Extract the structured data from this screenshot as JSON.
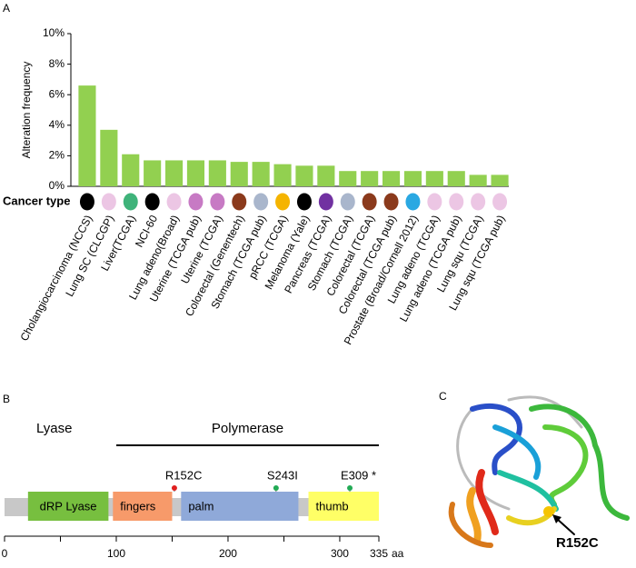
{
  "panels": [
    "A",
    "B",
    "C"
  ],
  "chart_data": {
    "type": "bar",
    "ylabel": "Alteration frequency",
    "row_label": "Cancer type",
    "categories": [
      "Cholangiocarcinoma (NCCS)",
      "Lung SC (CLCGP)",
      "Liver(TCGA)",
      "NCI-60",
      "Lung adeno(Broad)",
      "Uterine (TCGA pub)",
      "Uterine (TCGA)",
      "Colorectal (Genentech)",
      "Stomach (TCGA pub)",
      "pRCC (TCGA)",
      "Melanoma (Yale)",
      "Pancreas (TCGA)",
      "Stomach (TCGA)",
      "Colorectal (TCGA)",
      "Colorectal (TCGA pub)",
      "Prostate (Broad/Cornell 2012)",
      "Lung adeno (TCGA)",
      "Lung adeno (TCGA pub)",
      "Lung squ (TCGA)",
      "Lung squ (TCGA pub)"
    ],
    "values": [
      6.6,
      3.7,
      2.1,
      1.7,
      1.7,
      1.7,
      1.7,
      1.6,
      1.6,
      1.45,
      1.35,
      1.35,
      1.0,
      1.0,
      1.0,
      1.0,
      1.0,
      1.0,
      0.75,
      0.75
    ],
    "color": "#92d050",
    "type_colors": [
      "#000000",
      "#ecc6e4",
      "#3fb37a",
      "#000000",
      "#ecc6e4",
      "#c77ac4",
      "#c77ac4",
      "#8b3a1c",
      "#a9b6cc",
      "#f5b400",
      "#000000",
      "#7131a1",
      "#a9b6cc",
      "#8b3a1c",
      "#8b3a1c",
      "#2aa8e2",
      "#ecc6e4",
      "#ecc6e4",
      "#ecc6e4",
      "#ecc6e4"
    ],
    "category_colors": [
      "#000000",
      "#000000",
      "#000000",
      "#000000",
      "#000000",
      "#000000",
      "#000000",
      "#000000",
      "#000000",
      "#000000",
      "#000000",
      "#000000",
      "#000000",
      "#000000",
      "#e02020",
      "#000000",
      "#000000",
      "#000000",
      "#000000",
      "#000000"
    ],
    "ylim": [
      0,
      10
    ],
    "yticks": [
      {
        "value": 0,
        "label": "0%"
      },
      {
        "value": 2,
        "label": "2%"
      },
      {
        "value": 4,
        "label": "4%"
      },
      {
        "value": 6,
        "label": "6%"
      },
      {
        "value": 8,
        "label": "8%"
      },
      {
        "value": 10,
        "label": "10%"
      }
    ]
  },
  "protein_plot": {
    "groups": [
      {
        "label": "Lyase"
      },
      {
        "label": "Polymerase",
        "start": 100,
        "end": 335
      }
    ],
    "length": 335,
    "unit": "aa",
    "xticks": [
      0,
      100,
      200,
      300,
      335
    ],
    "minor_ticks": [
      50,
      150,
      250
    ],
    "domains": [
      {
        "label": "dRP Lyase",
        "start": 21,
        "end": 93,
        "color": "#77bf3f"
      },
      {
        "label": "fingers",
        "start": 97,
        "end": 150,
        "color": "#f79a6a"
      },
      {
        "label": "palm",
        "start": 158,
        "end": 263,
        "color": "#8fa9d9"
      },
      {
        "label": "thumb",
        "start": 272,
        "end": 335,
        "color": "#ffff66"
      }
    ],
    "mutations": [
      {
        "label": "R152C",
        "position": 152,
        "color": "#e02020"
      },
      {
        "label": "S243I",
        "position": 243,
        "color": "#22aa55"
      },
      {
        "label": "E309 *",
        "position": 309,
        "color": "#22aa55"
      }
    ]
  },
  "structure": {
    "label": "R152C"
  }
}
